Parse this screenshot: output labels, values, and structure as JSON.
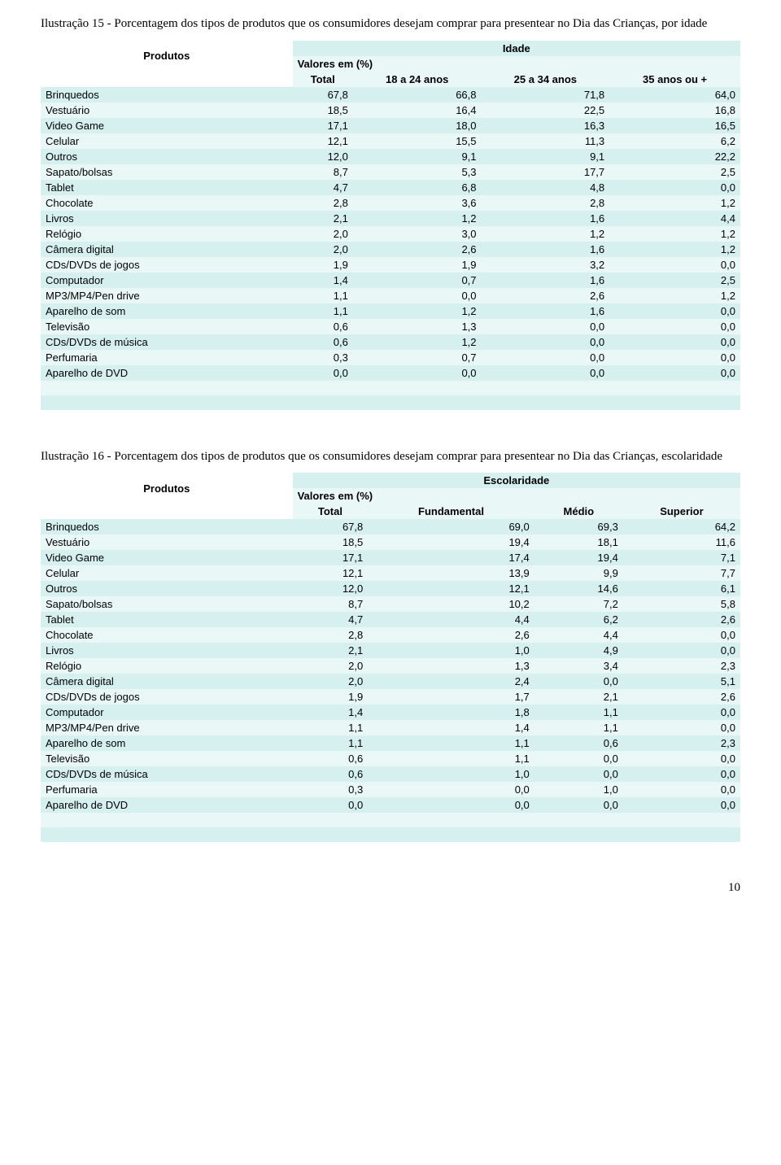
{
  "table1": {
    "caption": "Ilustração 15 - Porcentagem dos tipos de  produtos que os consumidores desejam comprar para presentear no Dia das Crianças, por idade",
    "row_header_label": "Produtos",
    "group_header": "Idade",
    "sub_header": "Valores em (%)",
    "columns": [
      "Total",
      "18 a 24 anos",
      "25 a 34 anos",
      "35 anos ou +"
    ],
    "rows": [
      {
        "label": "Brinquedos",
        "vals": [
          "67,8",
          "66,8",
          "71,8",
          "64,0"
        ]
      },
      {
        "label": "Vestuário",
        "vals": [
          "18,5",
          "16,4",
          "22,5",
          "16,8"
        ]
      },
      {
        "label": "Video Game",
        "vals": [
          "17,1",
          "18,0",
          "16,3",
          "16,5"
        ]
      },
      {
        "label": "Celular",
        "vals": [
          "12,1",
          "15,5",
          "11,3",
          "6,2"
        ]
      },
      {
        "label": "Outros",
        "vals": [
          "12,0",
          "9,1",
          "9,1",
          "22,2"
        ]
      },
      {
        "label": "Sapato/bolsas",
        "vals": [
          "8,7",
          "5,3",
          "17,7",
          "2,5"
        ]
      },
      {
        "label": "Tablet",
        "vals": [
          "4,7",
          "6,8",
          "4,8",
          "0,0"
        ]
      },
      {
        "label": "Chocolate",
        "vals": [
          "2,8",
          "3,6",
          "2,8",
          "1,2"
        ]
      },
      {
        "label": "Livros",
        "vals": [
          "2,1",
          "1,2",
          "1,6",
          "4,4"
        ]
      },
      {
        "label": "Relógio",
        "vals": [
          "2,0",
          "3,0",
          "1,2",
          "1,2"
        ]
      },
      {
        "label": "Câmera digital",
        "vals": [
          "2,0",
          "2,6",
          "1,6",
          "1,2"
        ]
      },
      {
        "label": "CDs/DVDs de jogos",
        "vals": [
          "1,9",
          "1,9",
          "3,2",
          "0,0"
        ]
      },
      {
        "label": "Computador",
        "vals": [
          "1,4",
          "0,7",
          "1,6",
          "2,5"
        ]
      },
      {
        "label": "MP3/MP4/Pen drive",
        "vals": [
          "1,1",
          "0,0",
          "2,6",
          "1,2"
        ]
      },
      {
        "label": "Aparelho de som",
        "vals": [
          "1,1",
          "1,2",
          "1,6",
          "0,0"
        ]
      },
      {
        "label": "Televisão",
        "vals": [
          "0,6",
          "1,3",
          "0,0",
          "0,0"
        ]
      },
      {
        "label": "CDs/DVDs de música",
        "vals": [
          "0,6",
          "1,2",
          "0,0",
          "0,0"
        ]
      },
      {
        "label": "Perfumaria",
        "vals": [
          "0,3",
          "0,7",
          "0,0",
          "0,0"
        ]
      },
      {
        "label": "Aparelho de DVD",
        "vals": [
          "0,0",
          "0,0",
          "0,0",
          "0,0"
        ]
      }
    ],
    "colors": {
      "stripe_a": "#d6f0f0",
      "stripe_b": "#eaf7f7",
      "text": "#000000",
      "background": "#ffffff"
    },
    "font": {
      "family": "Arial",
      "size_pt": 10
    }
  },
  "table2": {
    "caption": "Ilustração 16 - Porcentagem dos tipos de  produtos que os consumidores desejam comprar para presentear no Dia das Crianças, escolaridade",
    "row_header_label": "Produtos",
    "group_header": "Escolaridade",
    "sub_header": "Valores em (%)",
    "columns": [
      "Total",
      "Fundamental",
      "Médio",
      "Superior"
    ],
    "rows": [
      {
        "label": "Brinquedos",
        "vals": [
          "67,8",
          "69,0",
          "69,3",
          "64,2"
        ]
      },
      {
        "label": "Vestuário",
        "vals": [
          "18,5",
          "19,4",
          "18,1",
          "11,6"
        ]
      },
      {
        "label": "Video Game",
        "vals": [
          "17,1",
          "17,4",
          "19,4",
          "7,1"
        ]
      },
      {
        "label": "Celular",
        "vals": [
          "12,1",
          "13,9",
          "9,9",
          "7,7"
        ]
      },
      {
        "label": "Outros",
        "vals": [
          "12,0",
          "12,1",
          "14,6",
          "6,1"
        ]
      },
      {
        "label": "Sapato/bolsas",
        "vals": [
          "8,7",
          "10,2",
          "7,2",
          "5,8"
        ]
      },
      {
        "label": "Tablet",
        "vals": [
          "4,7",
          "4,4",
          "6,2",
          "2,6"
        ]
      },
      {
        "label": "Chocolate",
        "vals": [
          "2,8",
          "2,6",
          "4,4",
          "0,0"
        ]
      },
      {
        "label": "Livros",
        "vals": [
          "2,1",
          "1,0",
          "4,9",
          "0,0"
        ]
      },
      {
        "label": "Relógio",
        "vals": [
          "2,0",
          "1,3",
          "3,4",
          "2,3"
        ]
      },
      {
        "label": "Câmera digital",
        "vals": [
          "2,0",
          "2,4",
          "0,0",
          "5,1"
        ]
      },
      {
        "label": "CDs/DVDs de jogos",
        "vals": [
          "1,9",
          "1,7",
          "2,1",
          "2,6"
        ]
      },
      {
        "label": "Computador",
        "vals": [
          "1,4",
          "1,8",
          "1,1",
          "0,0"
        ]
      },
      {
        "label": "MP3/MP4/Pen drive",
        "vals": [
          "1,1",
          "1,4",
          "1,1",
          "0,0"
        ]
      },
      {
        "label": "Aparelho de som",
        "vals": [
          "1,1",
          "1,1",
          "0,6",
          "2,3"
        ]
      },
      {
        "label": "Televisão",
        "vals": [
          "0,6",
          "1,1",
          "0,0",
          "0,0"
        ]
      },
      {
        "label": "CDs/DVDs de música",
        "vals": [
          "0,6",
          "1,0",
          "0,0",
          "0,0"
        ]
      },
      {
        "label": "Perfumaria",
        "vals": [
          "0,3",
          "0,0",
          "1,0",
          "0,0"
        ]
      },
      {
        "label": "Aparelho de DVD",
        "vals": [
          "0,0",
          "0,0",
          "0,0",
          "0,0"
        ]
      }
    ],
    "colors": {
      "stripe_a": "#d6f0f0",
      "stripe_b": "#eaf7f7",
      "text": "#000000",
      "background": "#ffffff"
    },
    "font": {
      "family": "Arial",
      "size_pt": 10
    }
  },
  "page_number": "10"
}
